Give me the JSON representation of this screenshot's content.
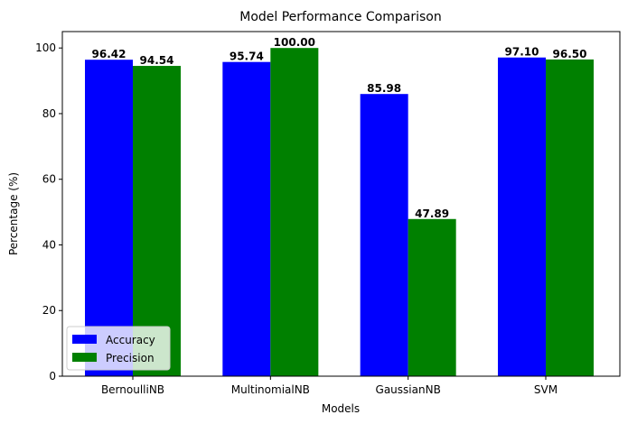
{
  "chart_data": {
    "type": "bar",
    "title": "Model Performance Comparison",
    "xlabel": "Models",
    "ylabel": "Percentage (%)",
    "categories": [
      "BernoulliNB",
      "MultinomialNB",
      "GaussianNB",
      "SVM"
    ],
    "series": [
      {
        "name": "Accuracy",
        "values": [
          96.42,
          95.74,
          85.98,
          97.1
        ],
        "labels": [
          "96.42",
          "95.74",
          "85.98",
          "97.10"
        ],
        "color": "#0000ff"
      },
      {
        "name": "Precision",
        "values": [
          94.54,
          100.0,
          47.89,
          96.5
        ],
        "labels": [
          "94.54",
          "100.00",
          "47.89",
          "96.50"
        ],
        "color": "#008000"
      }
    ],
    "ylim": [
      0,
      105
    ],
    "yticks": [
      0,
      20,
      40,
      60,
      80,
      100
    ],
    "grid": false,
    "legend_position": "lower-left"
  }
}
